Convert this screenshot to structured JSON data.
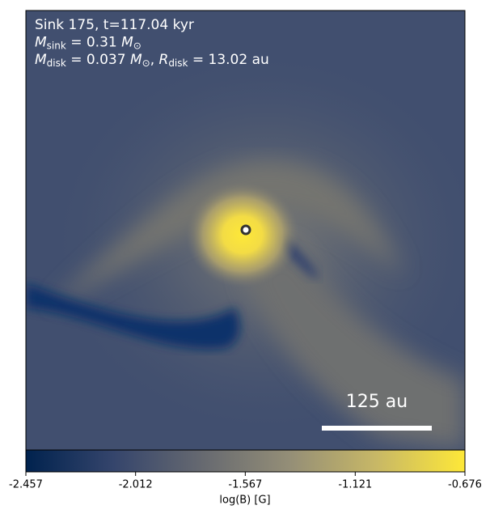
{
  "chart_data": {
    "type": "heatmap",
    "annotations": [
      [
        {
          "text": "Sink 175, t=117.04 kyr",
          "style": "normal"
        }
      ],
      [
        {
          "text": "M",
          "style": "italic"
        },
        {
          "text": "sink",
          "style": "sub"
        },
        {
          "text": " = 0.31 ",
          "style": "normal"
        },
        {
          "text": "M",
          "style": "italic"
        },
        {
          "text": "⊙",
          "style": "sub"
        }
      ],
      [
        {
          "text": "M",
          "style": "italic"
        },
        {
          "text": "disk",
          "style": "sub"
        },
        {
          "text": " = 0.037 ",
          "style": "normal"
        },
        {
          "text": "M",
          "style": "italic"
        },
        {
          "text": "⊙",
          "style": "sub"
        },
        {
          "text": ", ",
          "style": "normal"
        },
        {
          "text": "R",
          "style": "italic"
        },
        {
          "text": "disk",
          "style": "sub"
        },
        {
          "text": " = 13.02 au",
          "style": "normal"
        }
      ]
    ],
    "scale_bar_label": "125 au",
    "colorbar": {
      "label": "log(B) [G]",
      "clim": [
        -2.457,
        -0.676
      ],
      "ticks": [
        -2.457,
        -2.012,
        -1.567,
        -1.121,
        -0.676
      ],
      "colormap": [
        "#00224e",
        "#35456c",
        "#666970",
        "#948e77",
        "#c8b866",
        "#fee838"
      ]
    }
  }
}
